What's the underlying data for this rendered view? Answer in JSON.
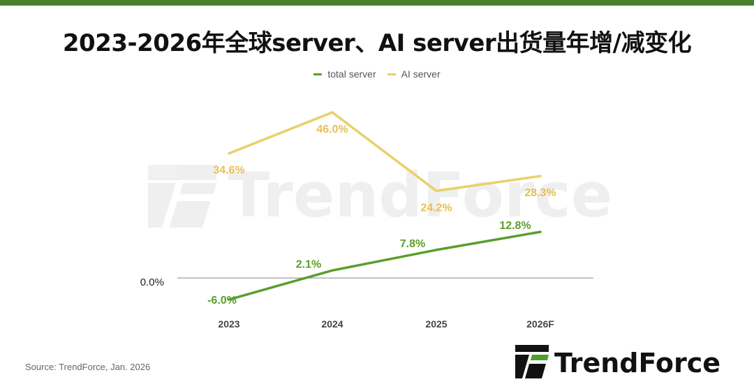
{
  "title": "2023-2026年全球server、AI server出货量年增/减变化",
  "source": "Source: TrendForce, Jan. 2026",
  "watermark": "TrendForce",
  "logo": {
    "text": "TrendForce"
  },
  "colors": {
    "total_server": "#5a9e2b",
    "ai_server": "#ead06a",
    "ai_label": "#e6c14e",
    "topbar": "#4a7f2c"
  },
  "chart_data": {
    "type": "line",
    "title": "2023-2026年全球server、AI server出货量年增/减变化",
    "categories": [
      "2023",
      "2024",
      "2025",
      "2026F"
    ],
    "series": [
      {
        "name": "total server",
        "values": [
          -6.0,
          2.1,
          7.8,
          12.8
        ],
        "labels": [
          "-6.0%",
          "2.1%",
          "7.8%",
          "12.8%"
        ]
      },
      {
        "name": "AI server",
        "values": [
          34.6,
          46.0,
          24.2,
          28.3
        ],
        "labels": [
          "34.6%",
          "46.0%",
          "24.2%",
          "28.3%"
        ]
      }
    ],
    "ylim": [
      -12,
      52
    ],
    "y_ticks": [
      {
        "value": 0,
        "label": "0.0%"
      }
    ],
    "legend_position": "top"
  }
}
